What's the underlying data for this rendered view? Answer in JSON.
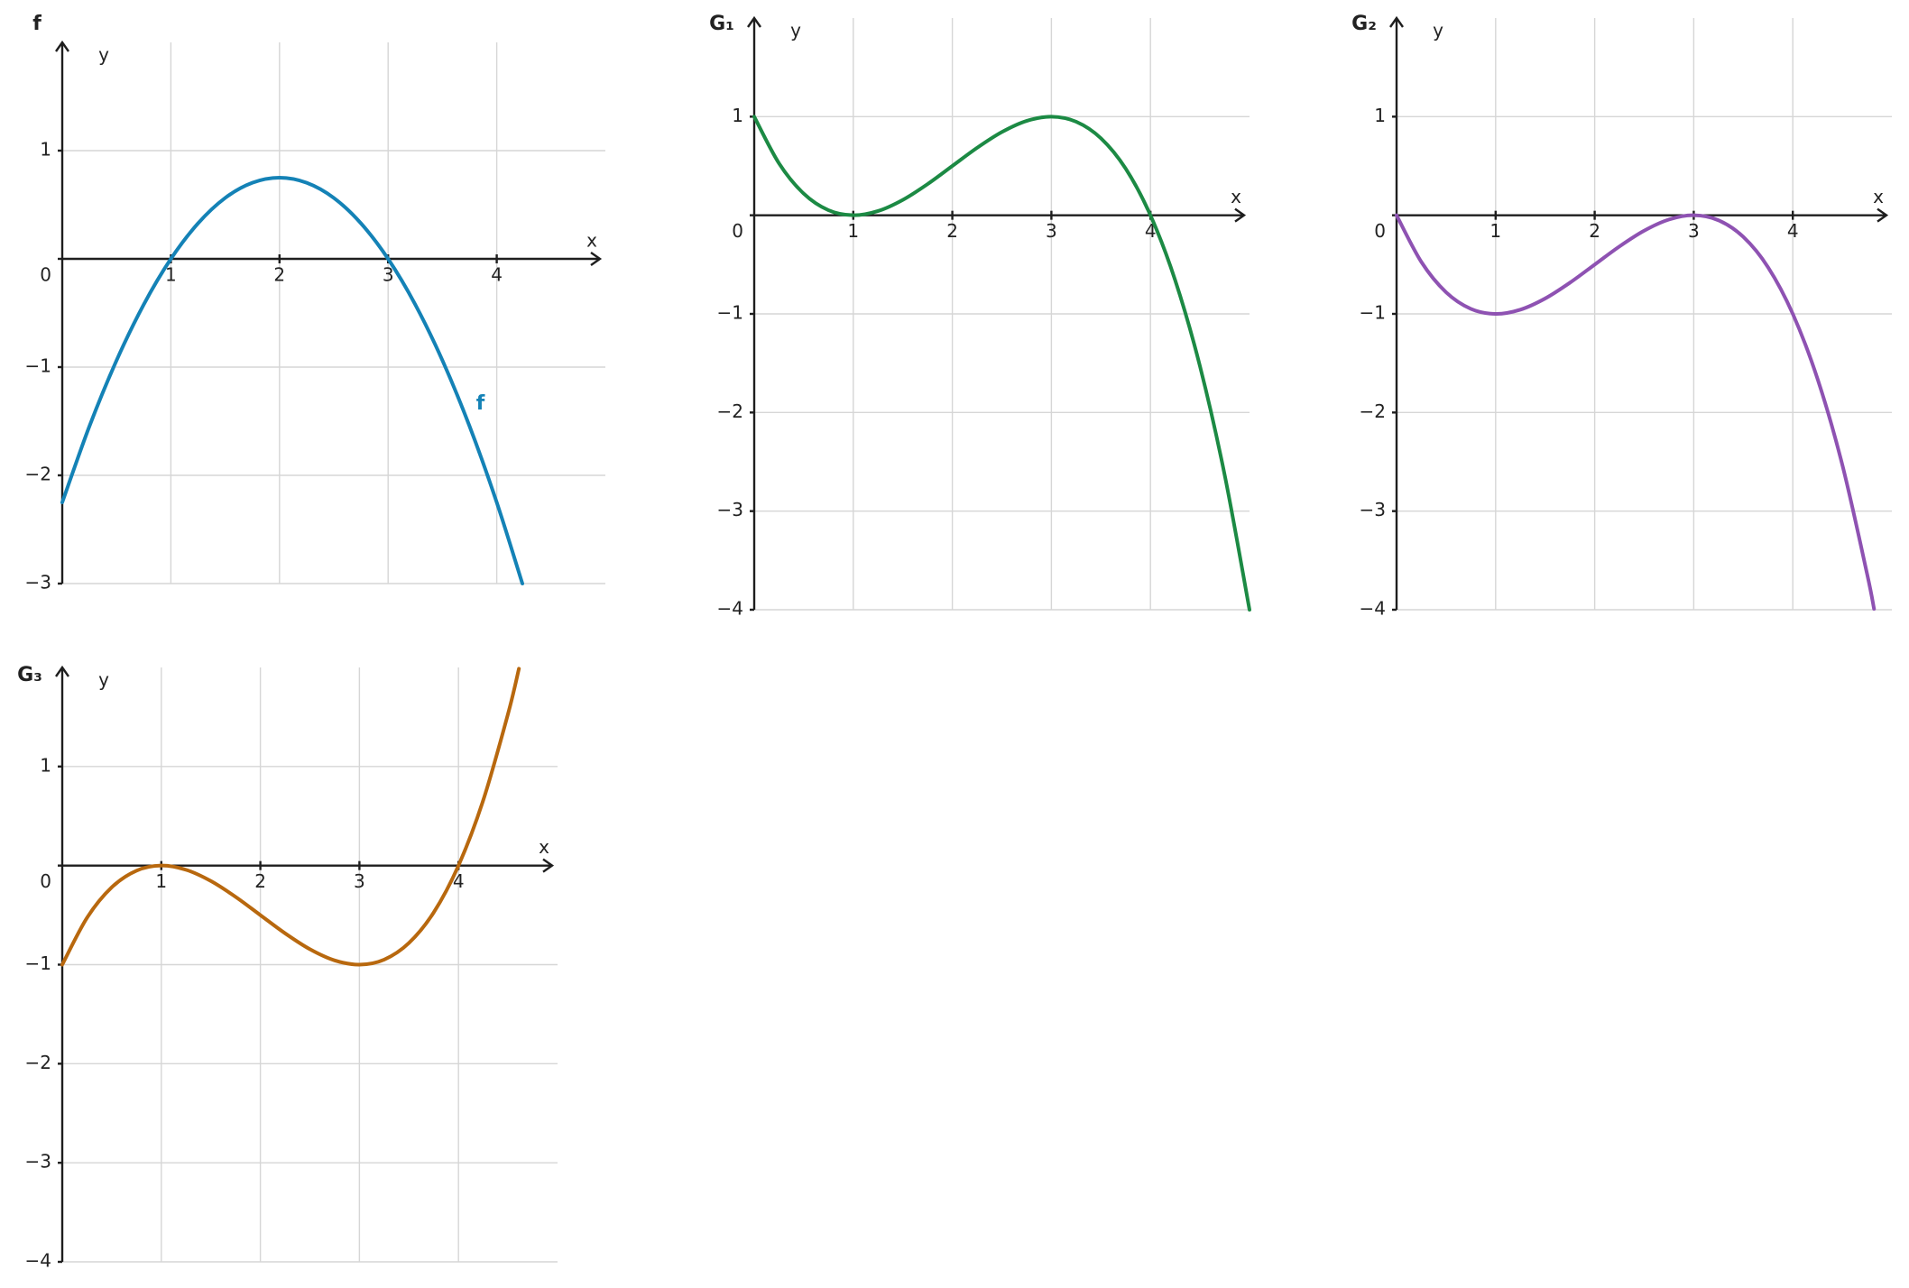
{
  "chart_data": [
    {
      "type": "line",
      "title": "f",
      "x_label": "x",
      "y_label": "y",
      "x": [
        0,
        0.25,
        0.5,
        0.75,
        1,
        1.25,
        1.5,
        1.75,
        2,
        2.25,
        2.5,
        2.75,
        3,
        3.25,
        3.5,
        3.75,
        4,
        4.236
      ],
      "series": [
        {
          "name": "f",
          "color": "#1482b6",
          "values": [
            -2.25,
            -1.547,
            -0.938,
            -0.422,
            0,
            0.328,
            0.563,
            0.703,
            0.75,
            0.703,
            0.563,
            0.328,
            0,
            -0.422,
            -0.938,
            -1.547,
            -2.25,
            -3
          ]
        }
      ],
      "xlim": [
        0,
        5
      ],
      "ylim": [
        -3,
        2
      ],
      "xticks": [
        1,
        2,
        3,
        4
      ],
      "yticks": [
        {
          "value": -3,
          "label": "−3"
        },
        {
          "value": -2,
          "label": "−2"
        },
        {
          "value": -1,
          "label": "−1"
        },
        0,
        1
      ],
      "grid": true
    },
    {
      "type": "line",
      "title": "G₁",
      "x_label": "x",
      "y_label": "y",
      "x": [
        0,
        0.25,
        0.5,
        0.75,
        1,
        1.25,
        1.5,
        1.75,
        2,
        2.25,
        2.5,
        2.75,
        3,
        3.25,
        3.5,
        3.75,
        4,
        4.25,
        4.5,
        4.75,
        5
      ],
      "series": [
        {
          "color": "#1c8a44",
          "values": [
            1,
            0.527,
            0.219,
            0.051,
            0,
            0.043,
            0.156,
            0.316,
            0.5,
            0.684,
            0.844,
            0.957,
            1,
            0.949,
            0.781,
            0.473,
            0,
            -0.66,
            -1.531,
            -2.637,
            -4
          ]
        }
      ],
      "xlim": [
        0,
        5
      ],
      "ylim": [
        -4,
        2
      ],
      "xticks": [
        1,
        2,
        3,
        4
      ],
      "yticks": [
        {
          "value": -4,
          "label": "−4"
        },
        {
          "value": -3,
          "label": "−3"
        },
        {
          "value": -2,
          "label": "−2"
        },
        {
          "value": -1,
          "label": "−1"
        },
        0,
        1
      ],
      "grid": true
    },
    {
      "type": "line",
      "title": "G₂",
      "x_label": "x",
      "y_label": "y",
      "x": [
        0,
        0.25,
        0.5,
        0.75,
        1,
        1.25,
        1.5,
        1.75,
        2,
        2.25,
        2.5,
        2.75,
        3,
        3.25,
        3.5,
        3.75,
        4,
        4.25,
        4.5,
        4.75,
        4.82
      ],
      "series": [
        {
          "color": "#8e52b2",
          "values": [
            0,
            -0.473,
            -0.781,
            -0.949,
            -1,
            -0.957,
            -0.844,
            -0.684,
            -0.5,
            -0.316,
            -0.156,
            -0.043,
            0,
            -0.051,
            -0.219,
            -0.527,
            -1,
            -1.66,
            -2.531,
            -3.637,
            -3.991
          ]
        }
      ],
      "xlim": [
        0,
        5
      ],
      "ylim": [
        -4,
        2
      ],
      "xticks": [
        1,
        2,
        3,
        4
      ],
      "yticks": [
        {
          "value": -4,
          "label": "−4"
        },
        {
          "value": -3,
          "label": "−3"
        },
        {
          "value": -2,
          "label": "−2"
        },
        {
          "value": -1,
          "label": "−1"
        },
        0,
        1
      ],
      "grid": true
    },
    {
      "type": "line",
      "title": "G₃",
      "x_label": "x",
      "y_label": "y",
      "x": [
        0,
        0.25,
        0.5,
        0.75,
        1,
        1.25,
        1.5,
        1.75,
        2,
        2.25,
        2.5,
        2.75,
        3,
        3.25,
        3.5,
        3.75,
        4,
        4.25,
        4.5,
        4.61
      ],
      "series": [
        {
          "color": "#b8680e",
          "values": [
            -1,
            -0.527,
            -0.219,
            -0.051,
            0,
            -0.043,
            -0.156,
            -0.316,
            -0.5,
            -0.684,
            -0.844,
            -0.957,
            -1,
            -0.949,
            -0.781,
            -0.473,
            0,
            0.66,
            1.531,
            1.987
          ]
        }
      ],
      "xlim": [
        0,
        5
      ],
      "ylim": [
        -4,
        2
      ],
      "xticks": [
        1,
        2,
        3,
        4
      ],
      "yticks": [
        {
          "value": -4,
          "label": "−4"
        },
        {
          "value": -3,
          "label": "−3"
        },
        {
          "value": -2,
          "label": "−2"
        },
        {
          "value": -1,
          "label": "−1"
        },
        0,
        1
      ],
      "grid": true
    }
  ]
}
